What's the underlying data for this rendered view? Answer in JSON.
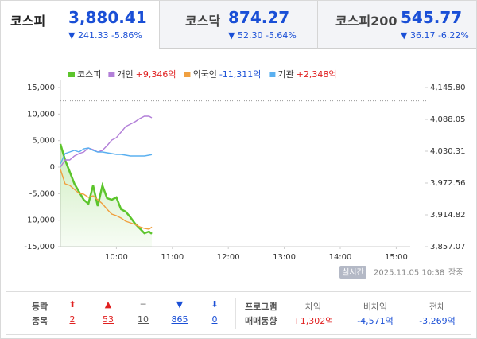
{
  "tabs": [
    {
      "name": "코스피",
      "value": "3,880.41",
      "change": "▼ 241.33 -5.86%"
    },
    {
      "name": "코스닥",
      "value": "874.27",
      "change": "▼ 52.30 -5.64%"
    },
    {
      "name": "코스피200",
      "value": "545.77",
      "change": "▼ 36.17 -6.22%"
    }
  ],
  "chart_data": {
    "type": "line",
    "x": [
      540,
      545,
      550,
      555,
      560,
      565,
      570,
      575,
      580,
      585,
      590,
      595,
      600,
      605,
      610,
      615,
      620,
      625,
      630,
      635,
      638
    ],
    "xlim": [
      540,
      915
    ],
    "xticks": [
      {
        "value": 600,
        "label": "10:00"
      },
      {
        "value": 660,
        "label": "11:00"
      },
      {
        "value": 720,
        "label": "12:00"
      },
      {
        "value": 780,
        "label": "13:00"
      },
      {
        "value": 840,
        "label": "14:00"
      },
      {
        "value": 900,
        "label": "15:00"
      }
    ],
    "ylim": [
      -15000,
      15000
    ],
    "yticks": [
      {
        "value": 15000,
        "label": "15,000"
      },
      {
        "value": 10000,
        "label": "10,000"
      },
      {
        "value": 5000,
        "label": "5,000"
      },
      0,
      {
        "value": -5000,
        "label": "-5,000"
      },
      {
        "value": -10000,
        "label": "-10,000"
      },
      {
        "value": -15000,
        "label": "-15,000"
      }
    ],
    "y2lim": [
      3857.07,
      4145.8
    ],
    "y2ticks": [
      {
        "value": 4145.8,
        "label": "4,145.80"
      },
      {
        "value": 4088.05,
        "label": "4,088.05"
      },
      {
        "value": 4030.31,
        "label": "4,030.31"
      },
      {
        "value": 3972.56,
        "label": "3,972.56"
      },
      {
        "value": 3914.82,
        "label": "3,914.82"
      },
      {
        "value": 3857.07,
        "label": "3,857.07"
      }
    ],
    "y2_reference": 4121.74,
    "series": [
      {
        "name": "코스피",
        "color": "#5cc52c",
        "axis": "y2",
        "values": [
          4043.3,
          4014.4,
          3992.8,
          3971.1,
          3956.7,
          3942.2,
          3935.0,
          3968.2,
          3930.7,
          3968.2,
          3945.1,
          3942.2,
          3946.6,
          3924.9,
          3920.6,
          3910.5,
          3898.9,
          3890.3,
          3881.6,
          3884.5,
          3880.4
        ]
      },
      {
        "name": "개인",
        "net": "+9,346억",
        "color": "#b27fd8",
        "values": [
          0,
          1350,
          1350,
          2100,
          2550,
          2850,
          3600,
          3300,
          2850,
          3150,
          4050,
          5100,
          5550,
          6600,
          7650,
          8100,
          8550,
          9150,
          9600,
          9600,
          9300
        ]
      },
      {
        "name": "외국인",
        "net": "-11,311억",
        "color": "#f0a040",
        "values": [
          -450,
          -3150,
          -3450,
          -4200,
          -4950,
          -5100,
          -5700,
          -5400,
          -6150,
          -6900,
          -7950,
          -8850,
          -9150,
          -9600,
          -10200,
          -10500,
          -10800,
          -11250,
          -11550,
          -11700,
          -11300
        ]
      },
      {
        "name": "기관",
        "net": "+2,348억",
        "color": "#5ab0f0",
        "values": [
          600,
          2550,
          2850,
          3150,
          2850,
          3450,
          3600,
          3150,
          2850,
          2850,
          2700,
          2550,
          2400,
          2400,
          2250,
          2100,
          2100,
          2100,
          2100,
          2250,
          2350
        ]
      }
    ]
  },
  "status": {
    "badge": "실시간",
    "timestamp": "2025.11.05 10:38",
    "state": "장중"
  },
  "breadth": {
    "title": [
      "등락",
      "종목"
    ],
    "counts": [
      2,
      53,
      10,
      865,
      0
    ]
  },
  "program": {
    "title": [
      "프로그램",
      "매매동향"
    ],
    "items": [
      {
        "label": "차익",
        "value": "+1,302억"
      },
      {
        "label": "비차익",
        "value": "-4,571억"
      },
      {
        "label": "전체",
        "value": "-3,269억"
      }
    ]
  }
}
